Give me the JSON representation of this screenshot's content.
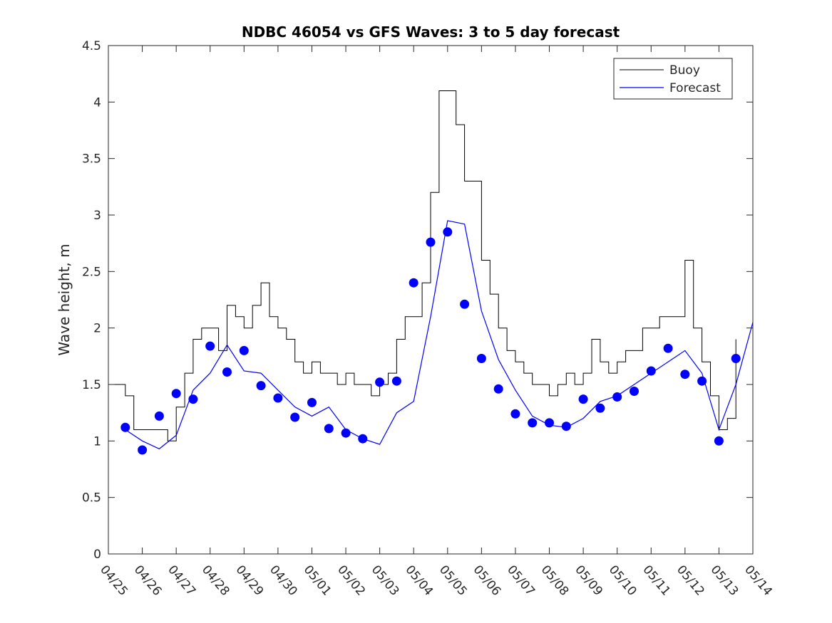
{
  "chart_data": {
    "type": "line",
    "title": "NDBC 46054 vs GFS Waves: 3 to 5 day forecast",
    "xlabel": "",
    "ylabel": "Wave height, m",
    "x_unit": "days",
    "xlim": [
      "04/25",
      "05/14"
    ],
    "ylim": [
      0,
      4.5
    ],
    "yticks": [
      0,
      0.5,
      1,
      1.5,
      2,
      2.5,
      3,
      3.5,
      4,
      4.5
    ],
    "xtick_labels": [
      "04/25",
      "04/26",
      "04/27",
      "04/28",
      "04/29",
      "04/30",
      "05/01",
      "05/02",
      "05/03",
      "05/04",
      "05/05",
      "05/06",
      "05/07",
      "05/08",
      "05/09",
      "05/10",
      "05/11",
      "05/12",
      "05/13",
      "05/14"
    ],
    "grid": false,
    "legend_position": "top-right",
    "colors": {
      "buoy": "#000000",
      "forecast": "#0000ff",
      "axes": "#262626"
    },
    "buoy": {
      "name": "Buoy",
      "x": [
        "04/25 00:00",
        "04/25 12:00",
        "04/25 18:00",
        "04/26 00:00",
        "04/26 12:00",
        "04/26 18:00",
        "04/27 00:00",
        "04/27 06:00",
        "04/27 12:00",
        "04/27 18:00",
        "04/28 06:00",
        "04/28 12:00",
        "04/28 18:00",
        "04/29 00:00",
        "04/29 06:00",
        "04/29 12:00",
        "04/29 18:00",
        "04/30 00:00",
        "04/30 06:00",
        "04/30 12:00",
        "04/30 18:00",
        "05/01 00:00",
        "05/01 06:00",
        "05/01 12:00",
        "05/01 18:00",
        "05/02 00:00",
        "05/02 06:00",
        "05/02 12:00",
        "05/02 18:00",
        "05/03 00:00",
        "05/03 06:00",
        "05/03 12:00",
        "05/03 18:00",
        "05/04 00:00",
        "05/04 06:00",
        "05/04 12:00",
        "05/04 18:00",
        "05/05 00:00",
        "05/05 06:00",
        "05/05 12:00",
        "05/05 18:00",
        "05/06 00:00",
        "05/06 06:00",
        "05/06 12:00",
        "05/06 18:00",
        "05/07 00:00",
        "05/07 06:00",
        "05/07 12:00",
        "05/07 18:00",
        "05/08 00:00",
        "05/08 06:00",
        "05/08 12:00",
        "05/08 18:00",
        "05/09 00:00",
        "05/09 06:00",
        "05/09 12:00",
        "05/09 18:00",
        "05/10 00:00",
        "05/10 06:00",
        "05/10 12:00",
        "05/10 18:00",
        "05/11 00:00",
        "05/11 06:00",
        "05/11 12:00",
        "05/11 18:00",
        "05/12 00:00",
        "05/12 06:00",
        "05/12 12:00",
        "05/12 18:00",
        "05/13 00:00",
        "05/13 06:00",
        "05/13 12:00"
      ],
      "values": [
        1.5,
        1.4,
        1.1,
        1.1,
        1.1,
        1.0,
        1.3,
        1.6,
        1.9,
        2.0,
        1.8,
        2.2,
        2.1,
        2.0,
        2.2,
        2.4,
        2.1,
        2.0,
        1.9,
        1.7,
        1.6,
        1.7,
        1.6,
        1.6,
        1.5,
        1.6,
        1.5,
        1.5,
        1.4,
        1.5,
        1.6,
        1.9,
        2.1,
        2.1,
        2.4,
        3.2,
        4.1,
        4.1,
        3.8,
        3.3,
        3.3,
        2.6,
        2.3,
        2.0,
        1.8,
        1.7,
        1.6,
        1.5,
        1.5,
        1.4,
        1.5,
        1.6,
        1.5,
        1.6,
        1.9,
        1.7,
        1.6,
        1.7,
        1.8,
        1.8,
        2.0,
        2.0,
        2.1,
        2.1,
        2.1,
        2.6,
        2.0,
        1.7,
        1.4,
        1.1,
        1.2,
        1.9
      ]
    },
    "forecast": {
      "name": "Forecast",
      "x": [
        "04/25 12:00",
        "04/26 00:00",
        "04/26 12:00",
        "04/27 00:00",
        "04/27 12:00",
        "04/28 00:00",
        "04/28 12:00",
        "04/29 00:00",
        "04/29 12:00",
        "04/30 00:00",
        "04/30 12:00",
        "05/01 00:00",
        "05/01 12:00",
        "05/02 00:00",
        "05/02 12:00",
        "05/03 00:00",
        "05/03 12:00",
        "05/04 00:00",
        "05/04 12:00",
        "05/05 00:00",
        "05/05 12:00",
        "05/06 00:00",
        "05/06 12:00",
        "05/07 00:00",
        "05/07 12:00",
        "05/08 00:00",
        "05/08 12:00",
        "05/09 00:00",
        "05/09 12:00",
        "05/10 00:00",
        "05/10 12:00",
        "05/11 00:00",
        "05/11 12:00",
        "05/12 00:00",
        "05/12 12:00",
        "05/13 00:00",
        "05/13 12:00",
        "05/14 00:00"
      ],
      "values": [
        1.1,
        1.0,
        0.93,
        1.05,
        1.45,
        1.6,
        1.85,
        1.62,
        1.6,
        1.45,
        1.3,
        1.22,
        1.3,
        1.1,
        1.02,
        0.97,
        1.25,
        1.35,
        2.1,
        2.95,
        2.92,
        2.15,
        1.72,
        1.45,
        1.22,
        1.14,
        1.12,
        1.2,
        1.35,
        1.4,
        1.5,
        1.6,
        1.7,
        1.8,
        1.6,
        1.1,
        1.5,
        2.05
      ],
      "marker_x": [
        "04/25 12:00",
        "04/26 00:00",
        "04/26 12:00",
        "04/27 00:00",
        "04/27 12:00",
        "04/28 00:00",
        "04/28 12:00",
        "04/29 00:00",
        "04/29 12:00",
        "04/30 00:00",
        "04/30 12:00",
        "05/01 00:00",
        "05/01 12:00",
        "05/02 00:00",
        "05/02 12:00",
        "05/03 00:00",
        "05/03 12:00",
        "05/04 00:00",
        "05/04 12:00",
        "05/05 00:00",
        "05/05 12:00",
        "05/06 00:00",
        "05/06 12:00",
        "05/07 00:00",
        "05/07 12:00",
        "05/08 00:00",
        "05/08 12:00",
        "05/09 00:00",
        "05/09 12:00",
        "05/10 00:00",
        "05/10 12:00",
        "05/11 00:00",
        "05/11 12:00",
        "05/12 00:00",
        "05/12 12:00",
        "05/13 00:00",
        "05/13 12:00"
      ],
      "marker_values": [
        1.12,
        0.92,
        1.22,
        1.42,
        1.37,
        1.84,
        1.61,
        1.8,
        1.49,
        1.38,
        1.21,
        1.34,
        1.11,
        1.07,
        1.02,
        1.52,
        1.53,
        2.4,
        2.76,
        2.85,
        2.21,
        1.73,
        1.46,
        1.24,
        1.16,
        1.16,
        1.13,
        1.37,
        1.29,
        1.39,
        1.44,
        1.62,
        1.82,
        1.59,
        1.53,
        1.0,
        1.73
      ]
    }
  }
}
